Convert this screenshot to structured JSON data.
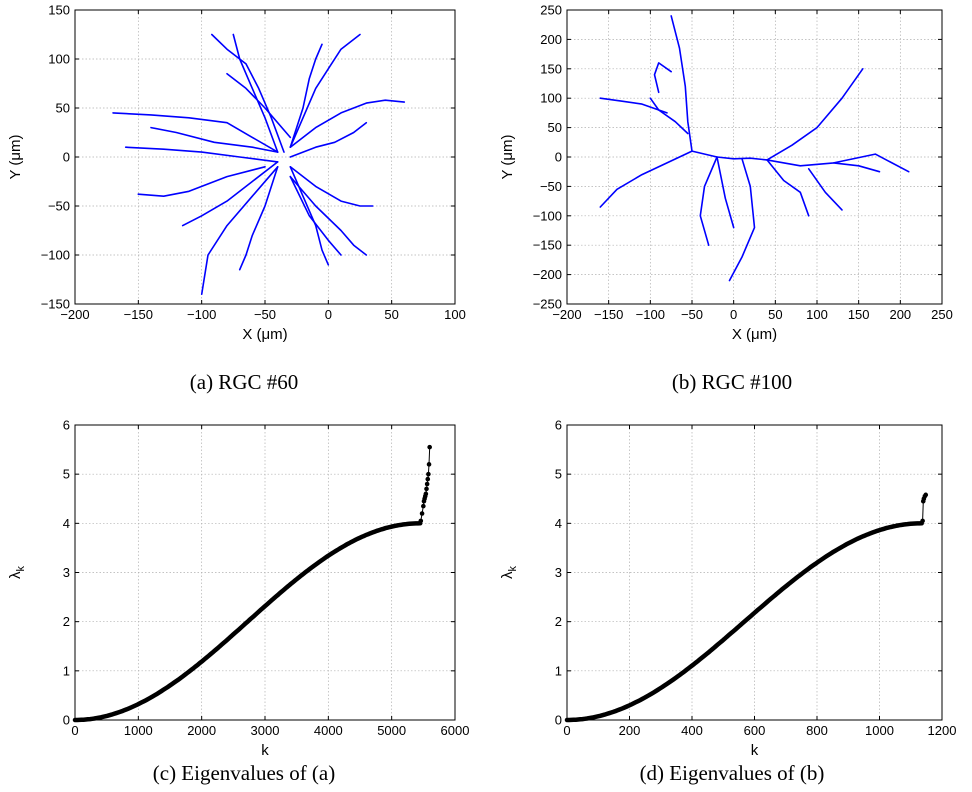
{
  "figure": {
    "captions": [
      "(a)  RGC #60",
      "(b)  RGC #100",
      "(c)  Eigenvalues of (a)",
      "(d)  Eigenvalues of (b)"
    ]
  },
  "chart_data": [
    {
      "type": "line",
      "caption": "(a)  RGC #60",
      "xlabel": "X (μm)",
      "ylabel": "Y (μm)",
      "xlim": [
        -200,
        100
      ],
      "ylim": [
        -150,
        150
      ],
      "xticks": [
        "−200",
        "−150",
        "−100",
        "−50",
        "0",
        "50",
        "100"
      ],
      "yticks": [
        "−150",
        "−100",
        "−50",
        "0",
        "50",
        "100",
        "150"
      ],
      "xtick_values": [
        -200,
        -150,
        -100,
        -50,
        0,
        50,
        100
      ],
      "ytick_values": [
        -150,
        -100,
        -50,
        0,
        50,
        100,
        150
      ],
      "grid": true,
      "color": "#0000ff",
      "series": [
        {
          "x": [
            -40,
            -60,
            -80,
            -110,
            -140,
            -170
          ],
          "y": [
            5,
            20,
            35,
            40,
            43,
            45
          ]
        },
        {
          "x": [
            -40,
            -70,
            -100,
            -130,
            -160
          ],
          "y": [
            -5,
            0,
            5,
            8,
            10
          ]
        },
        {
          "x": [
            -40,
            -50,
            -60,
            -70,
            -75
          ],
          "y": [
            5,
            40,
            70,
            100,
            125
          ]
        },
        {
          "x": [
            -35,
            -45,
            -55,
            -65,
            -80,
            -92
          ],
          "y": [
            5,
            40,
            70,
            95,
            110,
            125
          ]
        },
        {
          "x": [
            -30,
            -20,
            -10,
            0,
            10,
            25
          ],
          "y": [
            10,
            40,
            70,
            90,
            110,
            125
          ]
        },
        {
          "x": [
            -30,
            -10,
            10,
            30,
            45,
            60
          ],
          "y": [
            10,
            30,
            45,
            55,
            58,
            56
          ]
        },
        {
          "x": [
            -30,
            -20,
            -15,
            -10,
            -5
          ],
          "y": [
            10,
            50,
            80,
            100,
            115
          ]
        },
        {
          "x": [
            -40,
            -60,
            -80,
            -95,
            -100
          ],
          "y": [
            -10,
            -40,
            -70,
            -100,
            -140
          ]
        },
        {
          "x": [
            -40,
            -50,
            -60,
            -65,
            -70
          ],
          "y": [
            -10,
            -50,
            -80,
            -100,
            -115
          ]
        },
        {
          "x": [
            -30,
            -20,
            -10,
            -5,
            0
          ],
          "y": [
            -10,
            -40,
            -70,
            -95,
            -110
          ]
        },
        {
          "x": [
            -30,
            -10,
            10,
            25,
            35
          ],
          "y": [
            -10,
            -30,
            -45,
            -50,
            -50
          ]
        },
        {
          "x": [
            -30,
            -10,
            10,
            20,
            30
          ],
          "y": [
            -20,
            -50,
            -75,
            -90,
            -100
          ]
        },
        {
          "x": [
            -50,
            -80,
            -110,
            -130,
            -150
          ],
          "y": [
            -10,
            -20,
            -35,
            -40,
            -38
          ]
        },
        {
          "x": [
            -40,
            -60,
            -90,
            -120,
            -140
          ],
          "y": [
            5,
            10,
            15,
            25,
            30
          ]
        },
        {
          "x": [
            -40,
            -60,
            -80,
            -100,
            -115
          ],
          "y": [
            -5,
            -25,
            -45,
            -60,
            -70
          ]
        },
        {
          "x": [
            -30,
            -10,
            5,
            20,
            30
          ],
          "y": [
            0,
            10,
            15,
            25,
            35
          ]
        },
        {
          "x": [
            -30,
            -50,
            -65,
            -80
          ],
          "y": [
            20,
            50,
            70,
            85
          ]
        },
        {
          "x": [
            -30,
            -15,
            0,
            10
          ],
          "y": [
            -20,
            -60,
            -85,
            -100
          ]
        }
      ]
    },
    {
      "type": "line",
      "caption": "(b)  RGC #100",
      "xlabel": "X (μm)",
      "ylabel": "Y (μm)",
      "xlim": [
        -200,
        250
      ],
      "ylim": [
        -250,
        250
      ],
      "xticks": [
        "−200",
        "−150",
        "−100",
        "−50",
        "0",
        "50",
        "100",
        "150",
        "200",
        "250"
      ],
      "yticks": [
        "−250",
        "−200",
        "−150",
        "−100",
        "−50",
        "0",
        "50",
        "100",
        "150",
        "200",
        "250"
      ],
      "xtick_values": [
        -200,
        -150,
        -100,
        -50,
        0,
        50,
        100,
        150,
        200,
        250
      ],
      "ytick_values": [
        -250,
        -200,
        -150,
        -100,
        -50,
        0,
        50,
        100,
        150,
        200,
        250
      ],
      "grid": true,
      "color": "#0000ff",
      "series": [
        {
          "x": [
            -50,
            -20,
            0,
            20,
            40
          ],
          "y": [
            10,
            0,
            -3,
            -2,
            -5
          ]
        },
        {
          "x": [
            -50,
            -80,
            -110,
            -140,
            -160
          ],
          "y": [
            10,
            -10,
            -30,
            -55,
            -85
          ]
        },
        {
          "x": [
            -50,
            -55,
            -58,
            -65,
            -75
          ],
          "y": [
            10,
            60,
            120,
            185,
            240
          ]
        },
        {
          "x": [
            -55,
            -70,
            -90,
            -100
          ],
          "y": [
            40,
            60,
            80,
            100
          ]
        },
        {
          "x": [
            -80,
            -110,
            -135,
            -160
          ],
          "y": [
            75,
            90,
            95,
            100
          ]
        },
        {
          "x": [
            -90,
            -95,
            -90,
            -75
          ],
          "y": [
            110,
            140,
            160,
            145
          ]
        },
        {
          "x": [
            40,
            70,
            100,
            130,
            155
          ],
          "y": [
            -5,
            20,
            50,
            100,
            150
          ]
        },
        {
          "x": [
            40,
            80,
            120,
            170,
            210
          ],
          "y": [
            -5,
            -15,
            -10,
            5,
            -25
          ]
        },
        {
          "x": [
            120,
            150,
            175
          ],
          "y": [
            -10,
            -15,
            -25
          ]
        },
        {
          "x": [
            40,
            60,
            80,
            90
          ],
          "y": [
            -5,
            -40,
            -60,
            -100
          ]
        },
        {
          "x": [
            90,
            110,
            130
          ],
          "y": [
            -20,
            -60,
            -90
          ]
        },
        {
          "x": [
            10,
            20,
            25,
            10,
            -5
          ],
          "y": [
            -3,
            -50,
            -120,
            -170,
            -210
          ]
        },
        {
          "x": [
            -20,
            -35,
            -40,
            -30
          ],
          "y": [
            0,
            -50,
            -100,
            -150
          ]
        },
        {
          "x": [
            -20,
            -10,
            0
          ],
          "y": [
            0,
            -70,
            -120
          ]
        }
      ]
    },
    {
      "type": "scatter",
      "caption": "(c)  Eigenvalues of (a)",
      "xlabel": "k",
      "ylabel": "λ_k",
      "xlim": [
        0,
        6000
      ],
      "ylim": [
        0,
        6
      ],
      "xticks": [
        "0",
        "1000",
        "2000",
        "3000",
        "4000",
        "5000",
        "6000"
      ],
      "yticks": [
        "0",
        "1",
        "2",
        "3",
        "4",
        "5",
        "6"
      ],
      "xtick_values": [
        0,
        1000,
        2000,
        3000,
        4000,
        5000,
        6000
      ],
      "ytick_values": [
        0,
        1,
        2,
        3,
        4,
        5,
        6
      ],
      "grid": true,
      "color": "#000000",
      "curve": {
        "n_bulk": 5450,
        "bulk_max": 4.0
      },
      "tail": {
        "x": [
          5460,
          5480,
          5500,
          5510,
          5520,
          5530,
          5540,
          5550,
          5560,
          5570,
          5580,
          5590,
          5600
        ],
        "y": [
          4.05,
          4.2,
          4.35,
          4.45,
          4.5,
          4.55,
          4.6,
          4.7,
          4.8,
          4.9,
          5.0,
          5.2,
          5.55
        ]
      }
    },
    {
      "type": "scatter",
      "caption": "(d)  Eigenvalues of (b)",
      "xlabel": "k",
      "ylabel": "λ_k",
      "xlim": [
        0,
        1200
      ],
      "ylim": [
        0,
        6
      ],
      "xticks": [
        "0",
        "200",
        "400",
        "600",
        "800",
        "1000",
        "1200"
      ],
      "yticks": [
        "0",
        "1",
        "2",
        "3",
        "4",
        "5",
        "6"
      ],
      "xtick_values": [
        0,
        200,
        400,
        600,
        800,
        1000,
        1200
      ],
      "ytick_values": [
        0,
        1,
        2,
        3,
        4,
        5,
        6
      ],
      "grid": true,
      "color": "#000000",
      "curve": {
        "n_bulk": 1135,
        "bulk_max": 4.0
      },
      "tail": {
        "x": [
          1138,
          1140,
          1142,
          1145,
          1148
        ],
        "y": [
          4.05,
          4.45,
          4.5,
          4.55,
          4.58
        ]
      }
    }
  ]
}
